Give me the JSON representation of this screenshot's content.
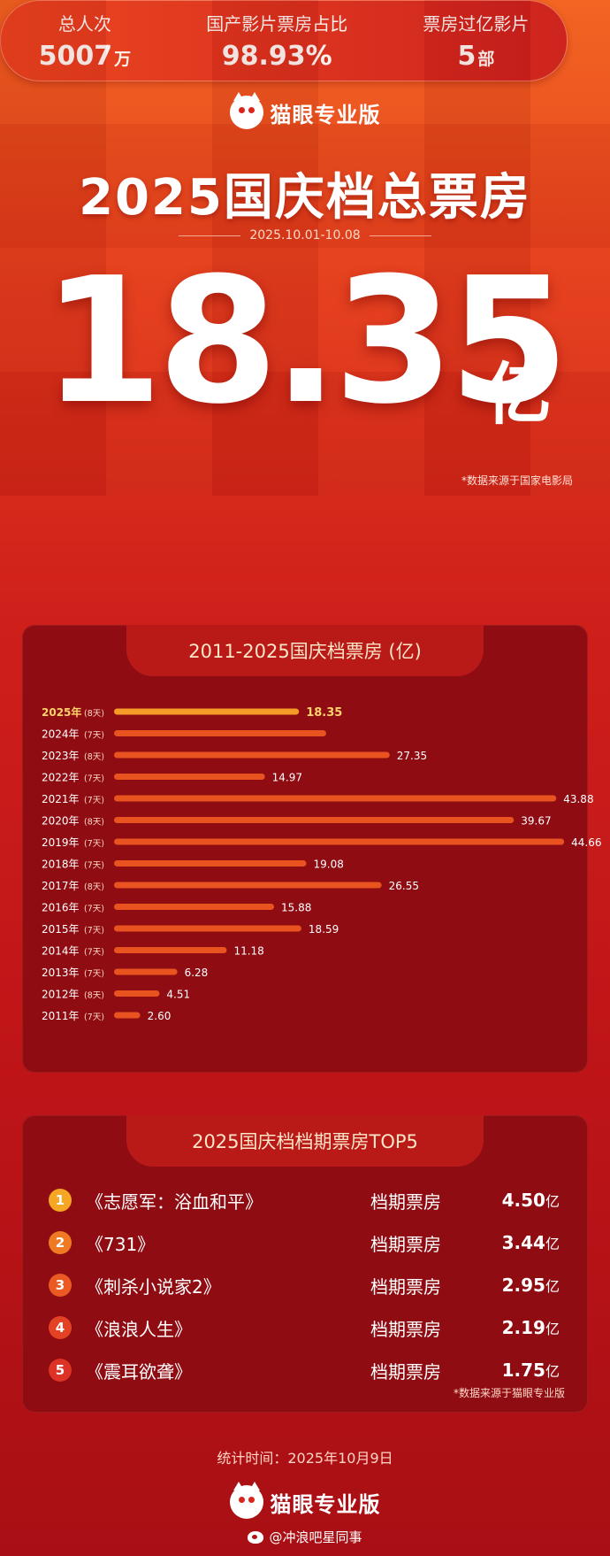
{
  "header": {
    "brand": "猫眼专业版",
    "title": "2025国庆档总票房",
    "date_range": "2025.10.01-10.08"
  },
  "total": {
    "value": "18.35",
    "unit": "亿"
  },
  "source_note_1": "*数据来源于国家电影局",
  "stats": [
    {
      "label": "总人次",
      "value": "5007",
      "unit": "万"
    },
    {
      "label": "国产影片票房占比",
      "value": "98.93%",
      "unit": ""
    },
    {
      "label": "票房过亿影片",
      "value": "5",
      "unit": "部"
    }
  ],
  "chart_title": "2011-2025国庆档票房 (亿)",
  "chart_data": {
    "type": "bar",
    "orientation": "horizontal",
    "title": "2011-2025国庆档票房 (亿)",
    "categories": [
      "2025年",
      "2024年",
      "2023年",
      "2022年",
      "2021年",
      "2020年",
      "2019年",
      "2018年",
      "2017年",
      "2016年",
      "2015年",
      "2014年",
      "2013年",
      "2012年",
      "2011年"
    ],
    "days": [
      "(8天)",
      "(7天)",
      "(8天)",
      "(7天)",
      "(7天)",
      "(8天)",
      "(7天)",
      "(7天)",
      "(8天)",
      "(7天)",
      "(7天)",
      "(7天)",
      "(7天)",
      "(8天)",
      "(7天)"
    ],
    "values": [
      18.35,
      21.05,
      27.35,
      14.97,
      43.88,
      39.67,
      44.66,
      19.08,
      26.55,
      15.88,
      18.59,
      11.18,
      6.28,
      4.51,
      2.6
    ],
    "value_labels": [
      "18.35",
      "",
      "27.35",
      "14.97",
      "43.88",
      "39.67",
      "44.66",
      "19.08",
      "26.55",
      "15.88",
      "18.59",
      "11.18",
      "6.28",
      "4.51",
      "2.60"
    ],
    "highlight_index": 0,
    "xlim": [
      0,
      50
    ],
    "colors": {
      "bar": "#e8531f",
      "highlight_bar": "#f59a26",
      "highlight_text": "#ffd36b"
    }
  },
  "top5": {
    "title": "2025国庆档档期票房TOP5",
    "items": [
      {
        "rank": "1",
        "title": "《志愿军：浴血和平》",
        "label": "档期票房",
        "value": "4.50",
        "unit": "亿",
        "color": "#f5a623"
      },
      {
        "rank": "2",
        "title": "《731》",
        "label": "档期票房",
        "value": "3.44",
        "unit": "亿",
        "color": "#f07a23"
      },
      {
        "rank": "3",
        "title": "《刺杀小说家2》",
        "label": "档期票房",
        "value": "2.95",
        "unit": "亿",
        "color": "#ea5a22"
      },
      {
        "rank": "4",
        "title": "《浪浪人生》",
        "label": "档期票房",
        "value": "2.19",
        "unit": "亿",
        "color": "#e34324"
      },
      {
        "rank": "5",
        "title": "《震耳欲聋》",
        "label": "档期票房",
        "value": "1.75",
        "unit": "亿",
        "color": "#dd3326"
      }
    ],
    "source_note": "*数据来源于猫眼专业版"
  },
  "footer": {
    "stat_time": "统计时间：2025年10月9日",
    "brand": "猫眼专业版",
    "weibo": "@冲浪吧星同事"
  }
}
